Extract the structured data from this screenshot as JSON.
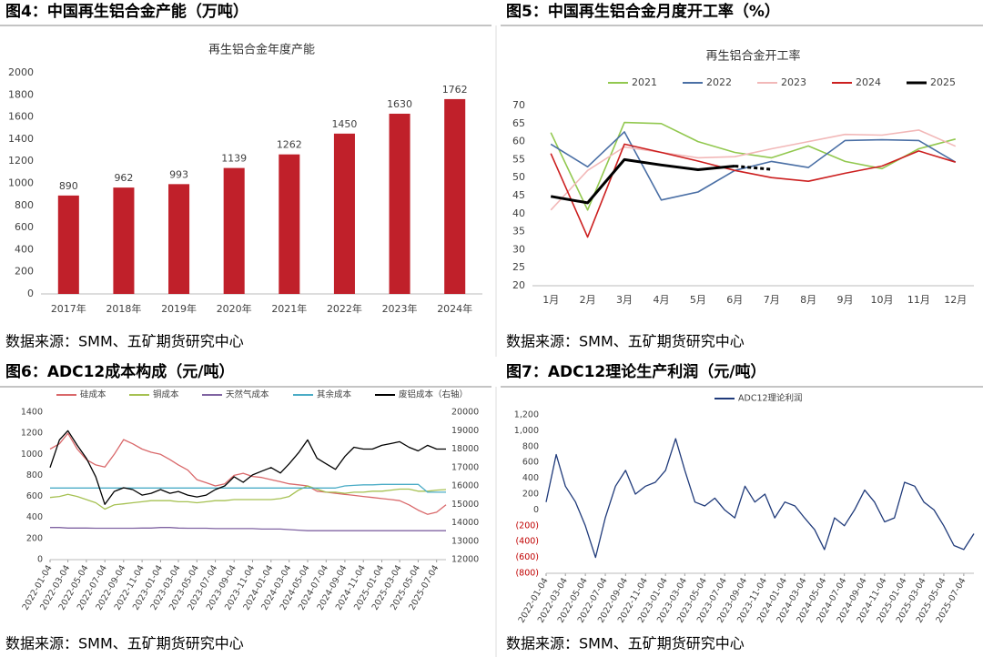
{
  "chart_data": [
    {
      "type": "bar",
      "figure_title": "图4：中国再生铝合金产能（万吨）",
      "title": "再生铝合金年度产能",
      "source": "数据来源：SMM、五矿期货研究中心",
      "categories": [
        "2017年",
        "2018年",
        "2019年",
        "2020年",
        "2021年",
        "2022年",
        "2023年",
        "2024年"
      ],
      "values": [
        890,
        962,
        993,
        1139,
        1262,
        1450,
        1630,
        1762
      ],
      "color": "#c0202a",
      "data_labels": true,
      "ylim": [
        0,
        2000
      ],
      "yticks": [
        0,
        200,
        400,
        600,
        800,
        1000,
        1200,
        1400,
        1600,
        1800,
        2000
      ],
      "grid": false
    },
    {
      "type": "line",
      "figure_title": "图5：中国再生铝合金月度开工率（%）",
      "title": "再生铝合金开工率",
      "source": "数据来源：SMM、五矿期货研究中心",
      "categories": [
        "1月",
        "2月",
        "3月",
        "4月",
        "5月",
        "6月",
        "7月",
        "8月",
        "9月",
        "10月",
        "11月",
        "12月"
      ],
      "series": [
        {
          "name": "2021",
          "color": "#92c84f",
          "values": [
            62.5,
            41,
            65.3,
            65,
            60,
            57,
            55.5,
            58.8,
            54.5,
            52.5,
            58,
            60.7
          ]
        },
        {
          "name": "2022",
          "color": "#4a6fa5",
          "values": [
            59.3,
            53,
            62.7,
            43.8,
            46,
            52,
            54.5,
            52.8,
            60.3,
            60.5,
            60.3,
            54.3
          ]
        },
        {
          "name": "2023",
          "color": "#f2b8b8",
          "values": [
            41,
            52,
            58.5,
            57,
            55.5,
            55.8,
            58,
            60,
            62,
            61.8,
            63.2,
            58.7
          ]
        },
        {
          "name": "2024",
          "color": "#cc1f1f",
          "values": [
            56.7,
            33.5,
            59.3,
            57,
            54.6,
            52,
            50,
            49,
            51.2,
            53.2,
            57.4,
            54.3
          ]
        },
        {
          "name": "2025",
          "color": "#000000",
          "width": 3,
          "dash_last_segment": true,
          "values": [
            44.8,
            43,
            55,
            53.5,
            52.2,
            53.2,
            52.3,
            null,
            null,
            null,
            null,
            null
          ]
        }
      ],
      "ylim": [
        20,
        70
      ],
      "yticks": [
        20,
        25,
        30,
        35,
        40,
        45,
        50,
        55,
        60,
        65,
        70
      ],
      "grid": false,
      "legend": "top"
    },
    {
      "type": "line",
      "figure_title": "图6：ADC12成本构成（元/吨）",
      "source": "数据来源：SMM、五矿期货研究中心",
      "x": [
        "2022-01-04",
        "2022-02-04",
        "2022-03-04",
        "2022-04-04",
        "2022-05-04",
        "2022-06-04",
        "2022-07-04",
        "2022-08-04",
        "2022-09-04",
        "2022-10-04",
        "2022-11-04",
        "2022-12-04",
        "2023-01-04",
        "2023-02-04",
        "2023-03-04",
        "2023-04-04",
        "2023-05-04",
        "2023-06-04",
        "2023-07-04",
        "2023-08-04",
        "2023-09-04",
        "2023-10-04",
        "2023-11-04",
        "2023-12-04",
        "2024-01-04",
        "2024-02-04",
        "2024-03-04",
        "2024-04-04",
        "2024-05-04",
        "2024-06-04",
        "2024-07-04",
        "2024-08-04",
        "2024-09-04",
        "2024-10-04",
        "2024-11-04",
        "2024-12-04",
        "2025-01-04",
        "2025-02-04",
        "2025-03-04",
        "2025-04-04",
        "2025-05-04",
        "2025-06-04",
        "2025-07-04",
        "2025-08-04"
      ],
      "series": [
        {
          "name": "硅成本",
          "color": "#d9686a",
          "values": [
            1050,
            1100,
            1200,
            1050,
            950,
            900,
            880,
            1000,
            1140,
            1100,
            1050,
            1020,
            1000,
            950,
            900,
            850,
            760,
            730,
            700,
            720,
            800,
            820,
            790,
            780,
            760,
            740,
            720,
            710,
            700,
            650,
            640,
            630,
            620,
            610,
            600,
            590,
            580,
            570,
            560,
            520,
            470,
            430,
            450,
            520
          ]
        },
        {
          "name": "铜成本",
          "color": "#a6c152",
          "values": [
            590,
            600,
            620,
            600,
            570,
            540,
            480,
            520,
            530,
            540,
            550,
            560,
            560,
            560,
            550,
            550,
            540,
            550,
            560,
            560,
            570,
            570,
            570,
            570,
            570,
            580,
            600,
            660,
            700,
            670,
            640,
            640,
            630,
            640,
            640,
            650,
            650,
            660,
            670,
            670,
            650,
            650,
            660,
            665
          ]
        },
        {
          "name": "天然气成本",
          "color": "#8064a2",
          "values": [
            305,
            305,
            300,
            300,
            300,
            298,
            298,
            298,
            298,
            298,
            300,
            300,
            305,
            305,
            300,
            298,
            298,
            298,
            295,
            295,
            295,
            295,
            295,
            290,
            290,
            290,
            285,
            280,
            275,
            275,
            275,
            275,
            275,
            275,
            275,
            275,
            275,
            275,
            275,
            275,
            275,
            275,
            275,
            275
          ]
        },
        {
          "name": "其余成本",
          "color": "#4bacc6",
          "values": [
            680,
            680,
            680,
            680,
            680,
            680,
            680,
            680,
            680,
            680,
            680,
            680,
            680,
            680,
            680,
            680,
            680,
            680,
            680,
            680,
            680,
            680,
            680,
            680,
            680,
            680,
            680,
            680,
            680,
            680,
            680,
            680,
            700,
            705,
            710,
            710,
            715,
            715,
            715,
            715,
            715,
            640,
            640,
            640
          ]
        },
        {
          "name": "废铝成本（右轴）",
          "color": "#000000",
          "axis": "y2",
          "values": [
            17000,
            18500,
            19000,
            18200,
            17500,
            16500,
            15000,
            15700,
            15900,
            15800,
            15500,
            15600,
            15800,
            15600,
            15700,
            15500,
            15400,
            15500,
            15800,
            16000,
            16500,
            16200,
            16600,
            16800,
            17000,
            16700,
            17200,
            17800,
            18500,
            17500,
            17200,
            16900,
            17600,
            18100,
            18000,
            18000,
            18200,
            18300,
            18400,
            18100,
            17900,
            18200,
            18000,
            18000
          ]
        }
      ],
      "xticks": [
        "2022-01-04",
        "2022-03-04",
        "2022-05-04",
        "2022-07-04",
        "2022-09-04",
        "2022-11-04",
        "2023-01-04",
        "2023-03-04",
        "2023-05-04",
        "2023-07-04",
        "2023-09-04",
        "2023-11-04",
        "2024-01-04",
        "2024-03-04",
        "2024-05-04",
        "2024-07-04",
        "2024-09-04",
        "2024-11-04",
        "2025-01-04",
        "2025-03-04",
        "2025-05-04",
        "2025-07-04"
      ],
      "ylim": [
        0,
        1400
      ],
      "yticks": [
        0,
        200,
        400,
        600,
        800,
        1000,
        1200,
        1400
      ],
      "y2lim": [
        12000,
        20000
      ],
      "y2ticks": [
        12000,
        13000,
        14000,
        15000,
        16000,
        17000,
        18000,
        19000,
        20000
      ],
      "grid": false,
      "legend": "top"
    },
    {
      "type": "line",
      "figure_title": "图7：ADC12理论生产利润（元/吨）",
      "source": "数据来源：SMM、五矿期货研究中心",
      "x": [
        "2022-01-04",
        "2022-02-04",
        "2022-03-04",
        "2022-04-04",
        "2022-05-04",
        "2022-06-04",
        "2022-07-04",
        "2022-08-04",
        "2022-09-04",
        "2022-10-04",
        "2022-11-04",
        "2022-12-04",
        "2023-01-04",
        "2023-02-04",
        "2023-03-04",
        "2023-04-04",
        "2023-05-04",
        "2023-06-04",
        "2023-07-04",
        "2023-08-04",
        "2023-09-04",
        "2023-10-04",
        "2023-11-04",
        "2023-12-04",
        "2024-01-04",
        "2024-02-04",
        "2024-03-04",
        "2024-04-04",
        "2024-05-04",
        "2024-06-04",
        "2024-07-04",
        "2024-08-04",
        "2024-09-04",
        "2024-10-04",
        "2024-11-04",
        "2024-12-04",
        "2025-01-04",
        "2025-02-04",
        "2025-03-04",
        "2025-04-04",
        "2025-05-04",
        "2025-06-04",
        "2025-07-04",
        "2025-08-04"
      ],
      "series": [
        {
          "name": "ADC12理论利润",
          "color": "#1f3a7a",
          "values": [
            100,
            700,
            300,
            100,
            -200,
            -600,
            -100,
            300,
            500,
            200,
            300,
            350,
            500,
            900,
            500,
            100,
            50,
            150,
            0,
            -100,
            300,
            100,
            200,
            -100,
            100,
            50,
            -100,
            -250,
            -500,
            -100,
            -200,
            0,
            250,
            100,
            -150,
            -100,
            350,
            300,
            100,
            0,
            -200,
            -450,
            -500,
            -300
          ]
        }
      ],
      "xticks": [
        "2022-01-04",
        "2022-03-04",
        "2022-05-04",
        "2022-07-04",
        "2022-09-04",
        "2022-11-04",
        "2023-01-04",
        "2023-03-04",
        "2023-05-04",
        "2023-07-04",
        "2023-09-04",
        "2023-11-04",
        "2024-01-04",
        "2024-03-04",
        "2024-05-04",
        "2024-07-04",
        "2024-09-04",
        "2024-11-04",
        "2025-01-04",
        "2025-03-04",
        "2025-05-04",
        "2025-07-04"
      ],
      "ylim": [
        -800,
        1200
      ],
      "yticks": [
        {
          "value": 1200,
          "label": "1,200"
        },
        {
          "value": 1000,
          "label": "1,000"
        },
        800,
        600,
        400,
        200,
        0,
        {
          "value": -200,
          "label": "(200)"
        },
        {
          "value": -400,
          "label": "(400)"
        },
        {
          "value": -600,
          "label": "(600)"
        },
        {
          "value": -800,
          "label": "(800)"
        }
      ],
      "negative_label_color": "#c00000",
      "grid": false,
      "legend": "top"
    }
  ]
}
